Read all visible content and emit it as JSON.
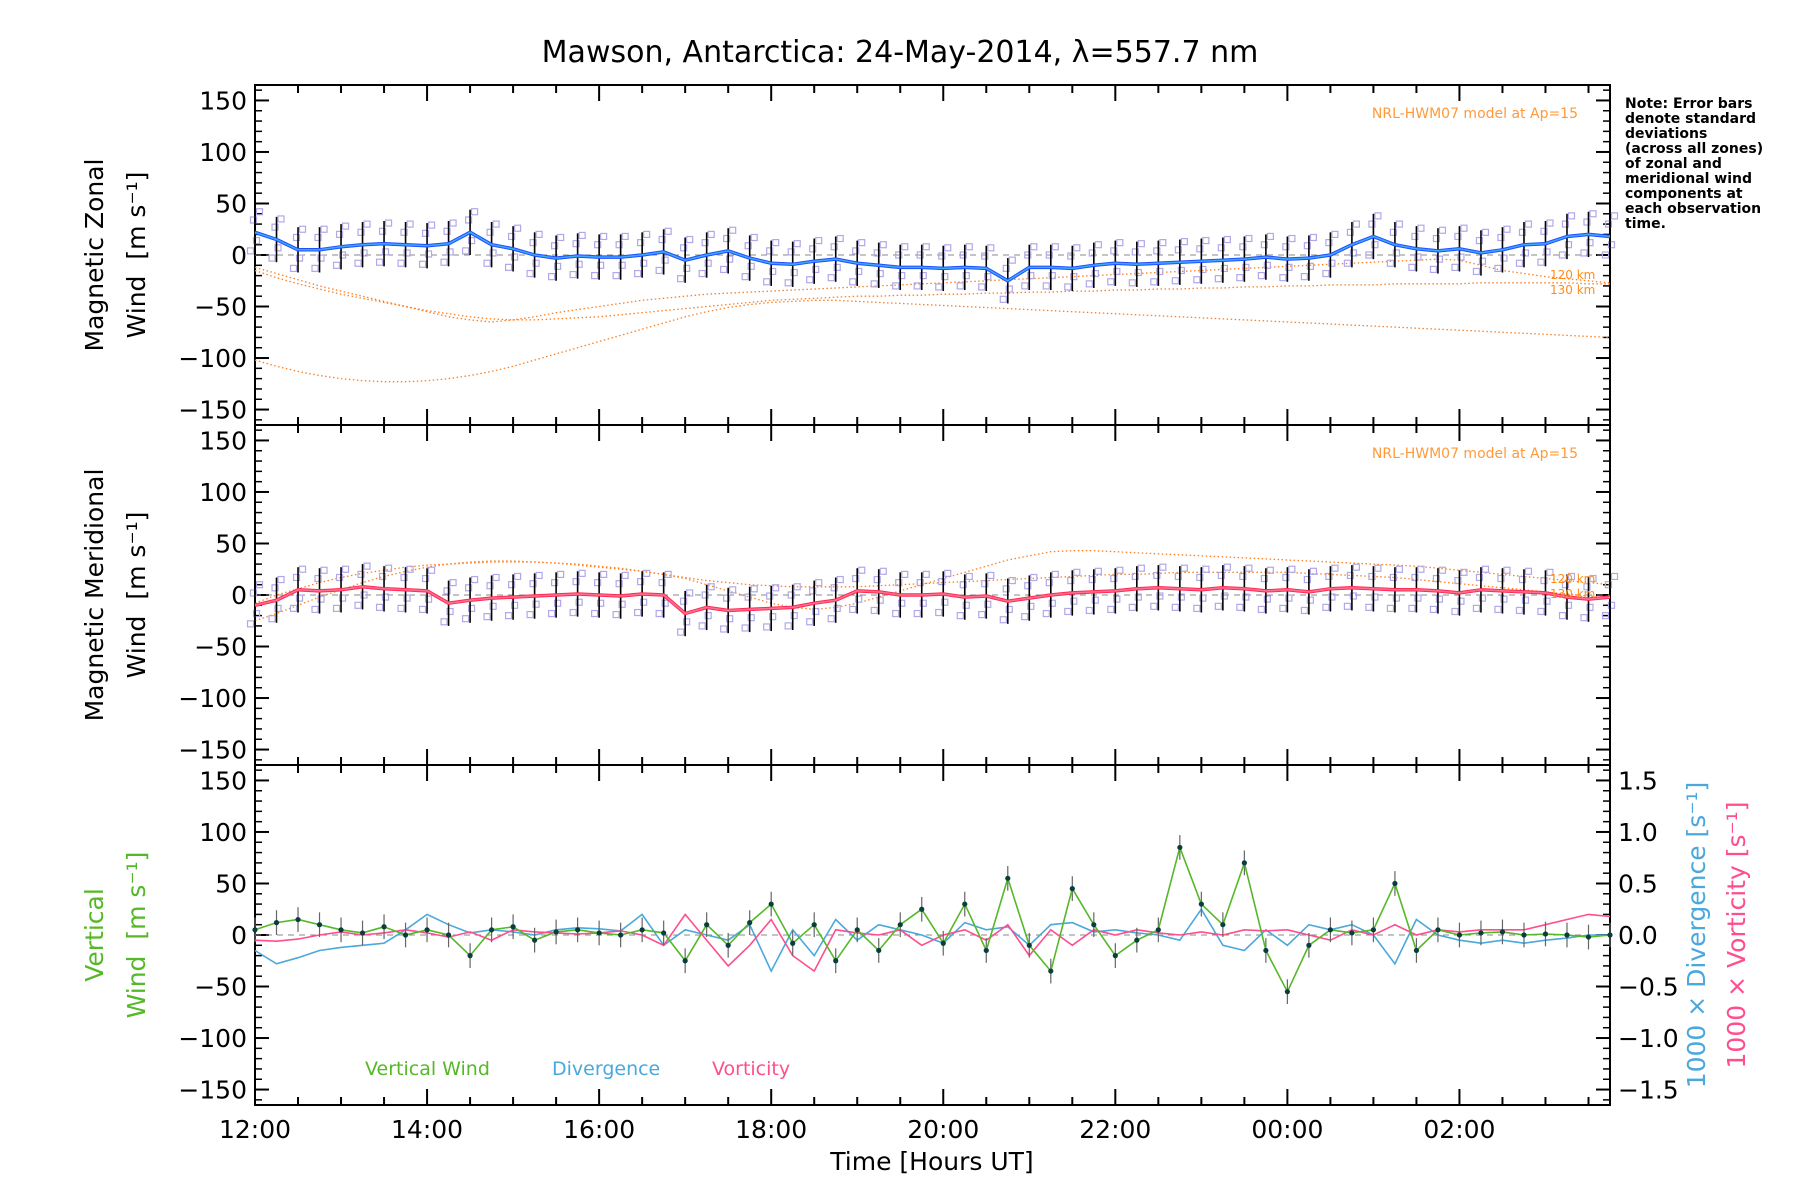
{
  "colors": {
    "zonal_line": "#1e4fff",
    "zonal_line_light": "#3fa7ff",
    "meridional_line": "#ff2a55",
    "meridional_line_light": "#ff7090",
    "model_curve": "#ff7f1f",
    "scatter_zone": "#b0a8e8",
    "vertical": "#55b828",
    "divergence": "#4aa8dc",
    "vorticity": "#ff4d8d",
    "errorbar": "#000000"
  },
  "chart_data": [
    {
      "type": "line",
      "panel": "zonal",
      "title": "Mawson, Antarctica: 24-May-2014, λ=557.7 nm",
      "ylabel_line1": "Magnetic Zonal",
      "ylabel_line2": "Wind",
      "ylabel_unit": "[m s⁻¹]",
      "ylim": [
        -165,
        165
      ],
      "yticks": [
        "150",
        "100",
        "50",
        "0",
        "−50",
        "−100",
        "−150"
      ],
      "model_label": "NRL-HWM07 model at Ap=15",
      "model_altitudes": [
        "120 km",
        "130 km"
      ],
      "note": [
        "Note: Error bars",
        "denote standard",
        "deviations",
        "(across all zones)",
        "of zonal and",
        "meridional wind",
        "components at",
        "each observation",
        "time."
      ],
      "x_hours": [
        12.0,
        12.25,
        12.5,
        12.75,
        13.0,
        13.25,
        13.5,
        13.75,
        14.0,
        14.25,
        14.5,
        14.75,
        15.0,
        15.25,
        15.5,
        15.75,
        16.0,
        16.25,
        16.5,
        16.75,
        17.0,
        17.25,
        17.5,
        17.75,
        18.0,
        18.25,
        18.5,
        18.75,
        19.0,
        19.25,
        19.5,
        19.75,
        20.0,
        20.25,
        20.5,
        20.75,
        21.0,
        21.25,
        21.5,
        21.75,
        22.0,
        22.25,
        22.5,
        22.75,
        23.0,
        23.25,
        23.5,
        23.75,
        24.0,
        24.25,
        24.5,
        24.75,
        25.0,
        25.25,
        25.5,
        25.75,
        26.0,
        26.25,
        26.5,
        26.75,
        27.0,
        27.25,
        27.5,
        27.75
      ],
      "series": [
        {
          "name": "zonal",
          "values": [
            22,
            15,
            5,
            5,
            8,
            10,
            11,
            10,
            9,
            11,
            22,
            10,
            6,
            0,
            -3,
            -1,
            -2,
            -2,
            0,
            3,
            -5,
            0,
            4,
            -3,
            -8,
            -9,
            -6,
            -4,
            -8,
            -10,
            -12,
            -12,
            -13,
            -12,
            -13,
            -25,
            -12,
            -12,
            -13,
            -10,
            -8,
            -9,
            -8,
            -7,
            -6,
            -5,
            -4,
            -2,
            -4,
            -3,
            0,
            10,
            18,
            10,
            6,
            4,
            6,
            2,
            5,
            10,
            11,
            18,
            20,
            18
          ]
        },
        {
          "name": "model 120 km",
          "values": [
            -12,
            -18,
            -24,
            -30,
            -35,
            -40,
            -45,
            -50,
            -55,
            -60,
            -63,
            -65,
            -63,
            -60,
            -56,
            -53,
            -50,
            -47,
            -44,
            -42,
            -40,
            -38,
            -37,
            -36,
            -35,
            -34,
            -33,
            -32,
            -31,
            -30,
            -29,
            -28,
            -27,
            -26,
            -25,
            -24,
            -23,
            -22,
            -21,
            -20,
            -19,
            -18,
            -17,
            -16,
            -15,
            -14,
            -13,
            -12,
            -11,
            -10,
            -9,
            -8,
            -7,
            -6,
            -5,
            -4,
            -5,
            -10,
            -15,
            -18,
            -21,
            -23,
            -25,
            -27
          ]
        },
        {
          "name": "model 130 km",
          "values": [
            -102,
            -108,
            -113,
            -117,
            -120,
            -122,
            -123,
            -123,
            -122,
            -120,
            -117,
            -113,
            -108,
            -102,
            -96,
            -90,
            -84,
            -78,
            -72,
            -66,
            -60,
            -55,
            -51,
            -48,
            -46,
            -45,
            -44,
            -44,
            -45,
            -46,
            -47,
            -48,
            -49,
            -50,
            -51,
            -52,
            -53,
            -54,
            -55,
            -56,
            -57,
            -58,
            -59,
            -60,
            -61,
            -62,
            -63,
            -64,
            -65,
            -66,
            -67,
            -68,
            -69,
            -70,
            -71,
            -72,
            -73,
            -74,
            -75,
            -76,
            -77,
            -78,
            -79,
            -80
          ]
        },
        {
          "name": "model mid",
          "values": [
            -15,
            -22,
            -28,
            -33,
            -38,
            -42,
            -46,
            -50,
            -54,
            -57,
            -60,
            -62,
            -63,
            -63,
            -62,
            -61,
            -60,
            -58,
            -56,
            -54,
            -52,
            -50,
            -48,
            -46,
            -44,
            -43,
            -42,
            -41,
            -40,
            -40,
            -39,
            -39,
            -38,
            -38,
            -37,
            -37,
            -36,
            -36,
            -35,
            -35,
            -34,
            -34,
            -33,
            -33,
            -32,
            -32,
            -31,
            -31,
            -30,
            -30,
            -29,
            -29,
            -29,
            -28,
            -28,
            -28,
            -28,
            -27,
            -27,
            -27,
            -27,
            -27,
            -28,
            -28
          ]
        }
      ]
    },
    {
      "type": "line",
      "panel": "meridional",
      "ylabel_line1": "Magnetic Meridional",
      "ylabel_line2": "Wind",
      "ylabel_unit": "[m s⁻¹]",
      "ylim": [
        -165,
        165
      ],
      "yticks": [
        "150",
        "100",
        "50",
        "0",
        "−50",
        "−100",
        "−150"
      ],
      "model_label": "NRL-HWM07 model at Ap=15",
      "model_altitudes": [
        "120 km",
        "130 km"
      ],
      "x_hours": [
        12.0,
        12.25,
        12.5,
        12.75,
        13.0,
        13.25,
        13.5,
        13.75,
        14.0,
        14.25,
        14.5,
        14.75,
        15.0,
        15.25,
        15.5,
        15.75,
        16.0,
        16.25,
        16.5,
        16.75,
        17.0,
        17.25,
        17.5,
        17.75,
        18.0,
        18.25,
        18.5,
        18.75,
        19.0,
        19.25,
        19.5,
        19.75,
        20.0,
        20.25,
        20.5,
        20.75,
        21.0,
        21.25,
        21.5,
        21.75,
        22.0,
        22.25,
        22.5,
        22.75,
        23.0,
        23.25,
        23.5,
        23.75,
        24.0,
        24.25,
        24.5,
        24.75,
        25.0,
        25.25,
        25.5,
        25.75,
        26.0,
        26.25,
        26.5,
        26.75,
        27.0,
        27.25,
        27.5,
        27.75
      ],
      "series": [
        {
          "name": "meridional",
          "values": [
            -10,
            -5,
            5,
            4,
            5,
            8,
            6,
            5,
            4,
            -8,
            -5,
            -3,
            -2,
            -1,
            0,
            1,
            0,
            -1,
            1,
            0,
            -18,
            -12,
            -15,
            -14,
            -13,
            -12,
            -8,
            -5,
            4,
            3,
            0,
            0,
            1,
            -2,
            -1,
            -6,
            -3,
            0,
            2,
            3,
            4,
            6,
            7,
            6,
            5,
            7,
            6,
            4,
            5,
            3,
            6,
            7,
            6,
            5,
            5,
            4,
            2,
            5,
            4,
            3,
            2,
            -2,
            -4,
            -2
          ]
        },
        {
          "name": "model 120 km",
          "values": [
            -8,
            0,
            6,
            12,
            17,
            21,
            24,
            27,
            29,
            30,
            31,
            32,
            32,
            32,
            31,
            30,
            28,
            26,
            23,
            20,
            17,
            14,
            12,
            10,
            9,
            8,
            8,
            8,
            8,
            9,
            10,
            11,
            12,
            13,
            14,
            15,
            16,
            17,
            18,
            19,
            20,
            20,
            21,
            22,
            22,
            22,
            22,
            22,
            22,
            21,
            20,
            19,
            18,
            17,
            15,
            13,
            11,
            9,
            7,
            5,
            3,
            1,
            -1,
            -3
          ]
        },
        {
          "name": "model 130 km",
          "values": [
            -25,
            -18,
            -10,
            -2,
            5,
            12,
            18,
            23,
            27,
            30,
            32,
            33,
            33,
            32,
            31,
            29,
            27,
            25,
            23,
            20,
            16,
            10,
            4,
            -2,
            -8,
            -12,
            -14,
            -12,
            -8,
            -2,
            4,
            10,
            16,
            22,
            28,
            34,
            38,
            42,
            43,
            43,
            42,
            41,
            40,
            39,
            38,
            37,
            36,
            35,
            34,
            33,
            32,
            31,
            30,
            29,
            28,
            26,
            24,
            22,
            20,
            18,
            16,
            14,
            12,
            10
          ]
        }
      ]
    },
    {
      "type": "line",
      "panel": "vertical",
      "ylabel_line1": "Vertical",
      "ylabel_line2": "Wind",
      "ylabel_unit": "[m s⁻¹]",
      "ylim": [
        -165,
        165
      ],
      "yticks": [
        "150",
        "100",
        "50",
        "0",
        "−50",
        "−100",
        "−150"
      ],
      "y2lim": [
        -1.65,
        1.65
      ],
      "y2ticks": [
        "1.5",
        "1.0",
        "0.5",
        "0.0",
        "−0.5",
        "−1.0",
        "−1.5"
      ],
      "y2label_div": "1000 × Divergence [s⁻¹]",
      "y2label_vor": "1000 × Vorticity [s⁻¹]",
      "xlabel": "Time [Hours UT]",
      "xticks": [
        "12:00",
        "14:00",
        "16:00",
        "18:00",
        "20:00",
        "22:00",
        "00:00",
        "02:00"
      ],
      "xlim": [
        12.0,
        27.75
      ],
      "legend": [
        "Vertical Wind",
        "Divergence",
        "Vorticity"
      ],
      "x_hours": [
        12.0,
        12.25,
        12.5,
        12.75,
        13.0,
        13.25,
        13.5,
        13.75,
        14.0,
        14.25,
        14.5,
        14.75,
        15.0,
        15.25,
        15.5,
        15.75,
        16.0,
        16.25,
        16.5,
        16.75,
        17.0,
        17.25,
        17.5,
        17.75,
        18.0,
        18.25,
        18.5,
        18.75,
        19.0,
        19.25,
        19.5,
        19.75,
        20.0,
        20.25,
        20.5,
        20.75,
        21.0,
        21.25,
        21.5,
        21.75,
        22.0,
        22.25,
        22.5,
        22.75,
        23.0,
        23.25,
        23.5,
        23.75,
        24.0,
        24.25,
        24.5,
        24.75,
        25.0,
        25.25,
        25.5,
        25.75,
        26.0,
        26.25,
        26.5,
        26.75,
        27.0,
        27.25,
        27.5,
        27.75
      ],
      "series": [
        {
          "name": "Vertical Wind",
          "values": [
            5,
            12,
            15,
            10,
            5,
            2,
            8,
            0,
            5,
            0,
            -20,
            5,
            8,
            -5,
            3,
            5,
            2,
            0,
            5,
            2,
            -25,
            10,
            -10,
            12,
            30,
            -8,
            10,
            -25,
            5,
            -15,
            10,
            25,
            -8,
            30,
            -15,
            55,
            -10,
            -35,
            45,
            10,
            -20,
            -5,
            5,
            85,
            30,
            10,
            70,
            -15,
            -55,
            -10,
            5,
            2,
            5,
            50,
            -15,
            5,
            0,
            2,
            3,
            0,
            1,
            0,
            -2,
            0
          ]
        },
        {
          "name": "Divergence",
          "values": [
            -0.15,
            -0.28,
            -0.22,
            -0.15,
            -0.12,
            -0.1,
            -0.08,
            0.05,
            0.2,
            0.1,
            0.02,
            0.05,
            0.03,
            0.0,
            0.05,
            0.07,
            0.06,
            0.04,
            0.2,
            -0.1,
            0.05,
            0.0,
            -0.05,
            0.1,
            -0.35,
            0.05,
            -0.2,
            0.15,
            -0.05,
            0.1,
            0.05,
            0.0,
            -0.08,
            0.12,
            0.05,
            0.08,
            -0.1,
            0.1,
            0.12,
            0.03,
            0.05,
            0.02,
            0.0,
            -0.05,
            0.25,
            -0.1,
            -0.15,
            0.05,
            -0.1,
            0.1,
            0.05,
            0.1,
            0.0,
            -0.28,
            0.15,
            0.0,
            -0.05,
            -0.08,
            -0.05,
            -0.08,
            -0.05,
            -0.03,
            0.0,
            0.0
          ]
        },
        {
          "name": "Vorticity",
          "values": [
            -0.05,
            -0.06,
            -0.04,
            0.0,
            0.03,
            0.0,
            0.02,
            0.05,
            0.02,
            -0.02,
            0.03,
            -0.05,
            0.05,
            0.03,
            0.02,
            0.01,
            0.02,
            0.04,
            0.0,
            -0.1,
            0.2,
            -0.05,
            -0.3,
            -0.1,
            0.15,
            -0.2,
            -0.35,
            0.05,
            0.02,
            0.0,
            0.05,
            -0.1,
            0.0,
            0.05,
            -0.05,
            0.1,
            -0.2,
            0.05,
            -0.1,
            0.05,
            0.0,
            0.05,
            0.02,
            0.0,
            0.03,
            0.0,
            0.05,
            0.04,
            0.05,
            0.0,
            -0.05,
            0.05,
            0.0,
            0.1,
            0.0,
            0.05,
            0.03,
            0.05,
            0.05,
            0.05,
            0.1,
            0.15,
            0.2,
            0.18
          ]
        }
      ]
    }
  ]
}
